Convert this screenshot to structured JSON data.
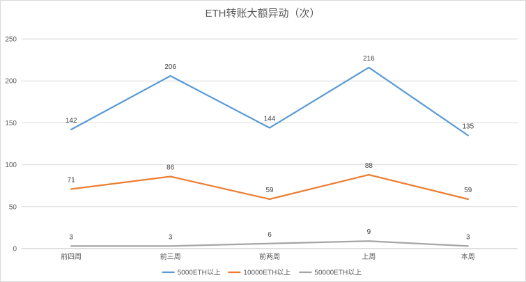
{
  "chart_data": {
    "type": "line",
    "title": "ETH转账大额异动（次）",
    "categories": [
      "前四周",
      "前三周",
      "前两周",
      "上周",
      "本周"
    ],
    "ylim": [
      0,
      250
    ],
    "yticks": [
      0,
      50,
      100,
      150,
      200,
      250
    ],
    "grid": true,
    "legend_position": "bottom",
    "series": [
      {
        "name": "5000ETH以上",
        "color": "#5b9bd5",
        "values": [
          142,
          206,
          144,
          216,
          135
        ]
      },
      {
        "name": "10000ETH以上",
        "color": "#ed7d31",
        "values": [
          71,
          86,
          59,
          88,
          59
        ]
      },
      {
        "name": "50000ETH以上",
        "color": "#a5a5a5",
        "values": [
          3,
          3,
          6,
          9,
          3
        ]
      }
    ]
  }
}
